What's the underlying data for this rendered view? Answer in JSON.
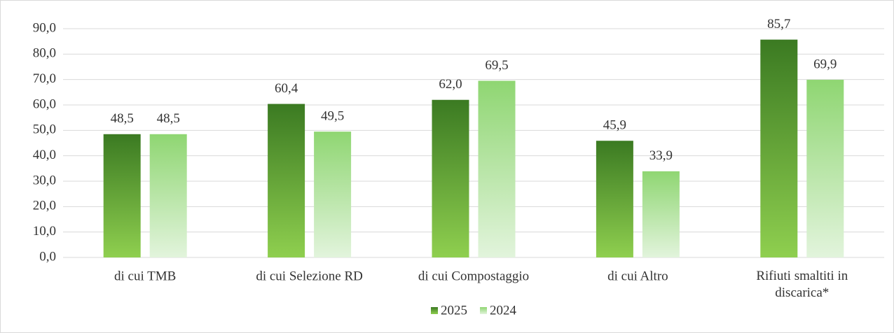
{
  "chart_data": {
    "type": "bar",
    "categories": [
      "di cui TMB",
      "di cui Selezione RD",
      "di cui Compostaggio",
      "di cui Altro",
      "Rifiuti smaltiti in discarica*"
    ],
    "series": [
      {
        "name": "2025",
        "color": "#3b7a22",
        "values": [
          48.5,
          60.4,
          62.0,
          45.9,
          85.7
        ],
        "value_labels": [
          "48,5",
          "60,4",
          "62,0",
          "45,9",
          "85,7"
        ]
      },
      {
        "name": "2024",
        "color": "#8fd672",
        "values": [
          48.5,
          49.5,
          69.5,
          33.9,
          69.9
        ],
        "value_labels": [
          "48,5",
          "49,5",
          "69,5",
          "33,9",
          "69,9"
        ]
      }
    ],
    "ylim": [
      0,
      90
    ],
    "yticks": [
      {
        "value": 0,
        "label": "0,0"
      },
      {
        "value": 10,
        "label": "10,0"
      },
      {
        "value": 20,
        "label": "20,0"
      },
      {
        "value": 30,
        "label": "30,0"
      },
      {
        "value": 40,
        "label": "40,0"
      },
      {
        "value": 50,
        "label": "50,0"
      },
      {
        "value": 60,
        "label": "60,0"
      },
      {
        "value": 70,
        "label": "70,0"
      },
      {
        "value": 80,
        "label": "80,0"
      },
      {
        "value": 90,
        "label": "90,0"
      }
    ],
    "grid": true,
    "legend": "bottom"
  }
}
